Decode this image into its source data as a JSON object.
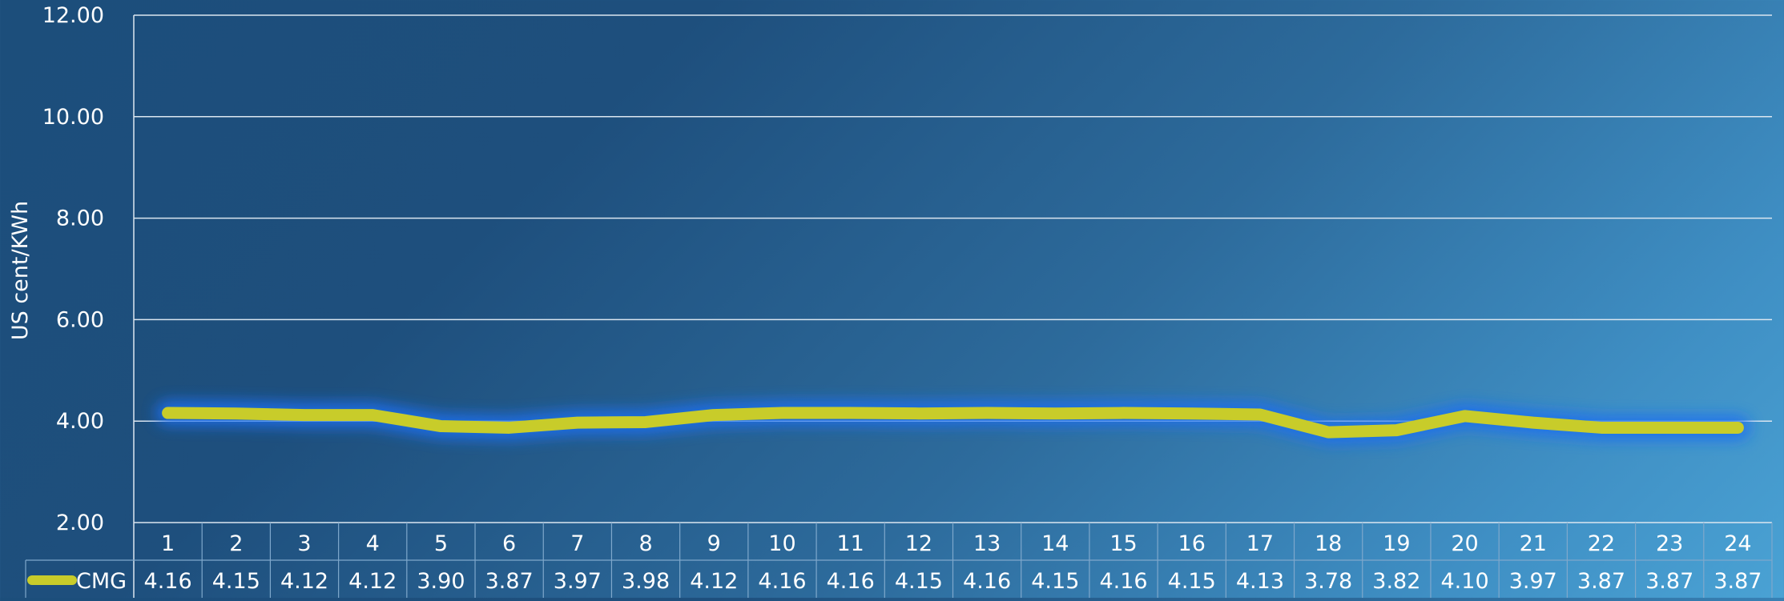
{
  "chart_data": {
    "type": "line",
    "title": "",
    "xlabel": "",
    "ylabel": "US cent/KWh",
    "ylim": [
      2.0,
      12.0
    ],
    "yticks": [
      "2.00",
      "4.00",
      "6.00",
      "8.00",
      "10.00",
      "12.00"
    ],
    "categories": [
      "1",
      "2",
      "3",
      "4",
      "5",
      "6",
      "7",
      "8",
      "9",
      "10",
      "11",
      "12",
      "13",
      "14",
      "15",
      "16",
      "17",
      "18",
      "19",
      "20",
      "21",
      "22",
      "23",
      "24"
    ],
    "series": [
      {
        "name": "CMG",
        "values": [
          4.16,
          4.15,
          4.12,
          4.12,
          3.9,
          3.87,
          3.97,
          3.98,
          4.12,
          4.16,
          4.16,
          4.15,
          4.16,
          4.15,
          4.16,
          4.15,
          4.13,
          3.78,
          3.82,
          4.1,
          3.97,
          3.87,
          3.87,
          3.87
        ],
        "labels": [
          "4.16",
          "4.15",
          "4.12",
          "4.12",
          "3.90",
          "3.87",
          "3.97",
          "3.98",
          "4.12",
          "4.16",
          "4.16",
          "4.15",
          "4.16",
          "4.15",
          "4.16",
          "4.15",
          "4.13",
          "3.78",
          "3.82",
          "4.10",
          "3.97",
          "3.87",
          "3.87",
          "3.87"
        ],
        "color": "#c8cc2a",
        "glow_color": "#1a6ff0"
      }
    ],
    "grid": true,
    "legend": "data-table",
    "colors": {
      "gridline": "#dbe6f0",
      "text": "#ffffff",
      "table_border": "#7fa8cc"
    }
  }
}
